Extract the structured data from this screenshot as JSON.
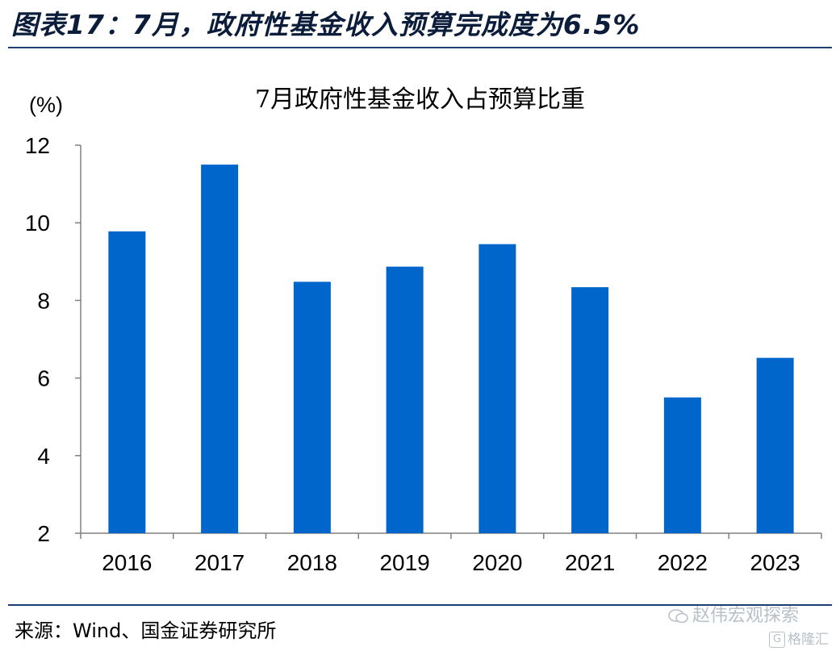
{
  "figure": {
    "title": "图表17：7月，政府性基金收入预算完成度为6.5%",
    "source": "来源：Wind、国金证券研究所",
    "watermark": "赵伟宏观探索",
    "watermark_icon": "wechat-icon",
    "brand_logo_text": "格隆汇",
    "brand_logo_glyph": "G"
  },
  "colors": {
    "bar": "#0066CC",
    "axis": "#808080",
    "rule": "#1f3f74"
  },
  "chart_data": {
    "type": "bar",
    "title": "7月政府性基金收入占预算比重",
    "ylabel": "(%)",
    "xlabel": "",
    "categories": [
      "2016",
      "2017",
      "2018",
      "2019",
      "2020",
      "2021",
      "2022",
      "2023"
    ],
    "values": [
      9.78,
      11.5,
      8.48,
      8.87,
      9.45,
      8.34,
      5.5,
      6.52
    ],
    "ylim": [
      2,
      12
    ],
    "yticks": [
      "2",
      "4",
      "6",
      "8",
      "10",
      "12"
    ],
    "grid": false,
    "legend": "none"
  }
}
